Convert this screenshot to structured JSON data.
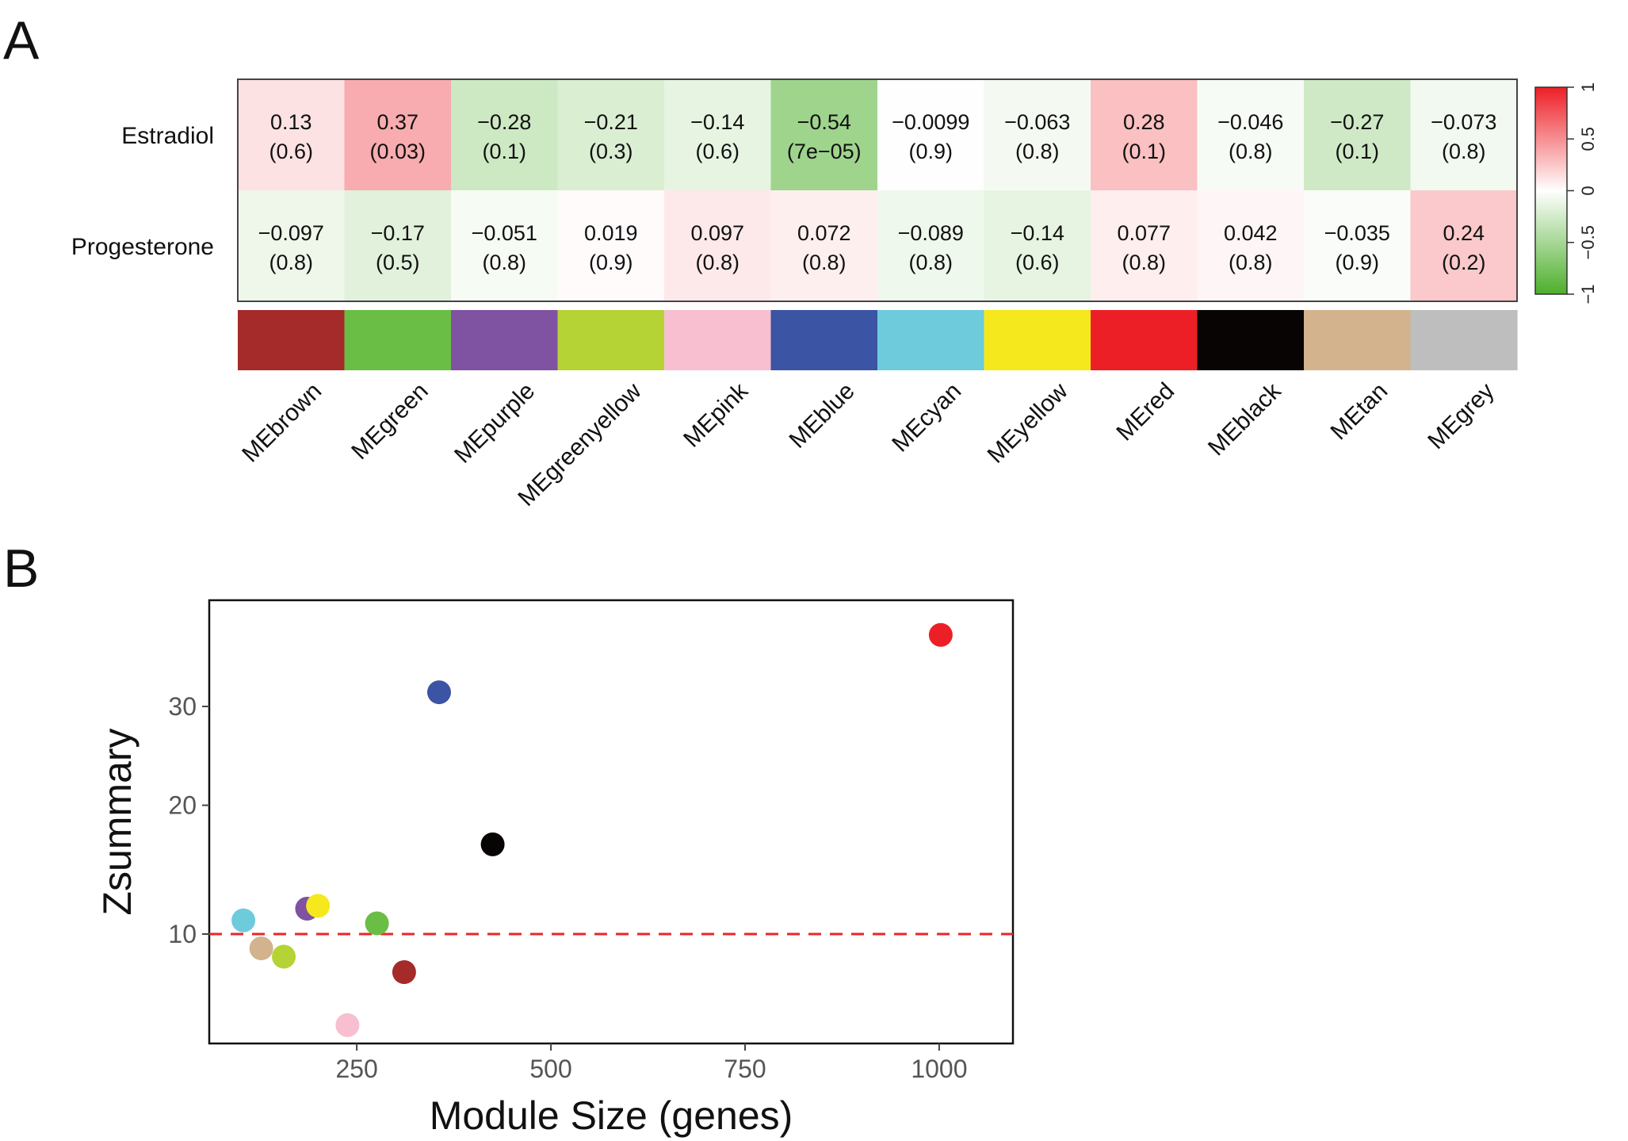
{
  "panel_labels": {
    "a": "A",
    "b": "B"
  },
  "chart_data": [
    {
      "type": "heatmap",
      "panel": "A",
      "rows": [
        "Estradiol",
        "Progesterone"
      ],
      "columns": [
        "MEbrown",
        "MEgreen",
        "MEpurple",
        "MEgreenyellow",
        "MEpink",
        "MEblue",
        "MEcyan",
        "MEyellow",
        "MEred",
        "MEblack",
        "MEtan",
        "MEgrey"
      ],
      "column_colors": [
        "#a52a2a",
        "#6abd45",
        "#7f52a2",
        "#b5d334",
        "#f7bfcf",
        "#3b54a3",
        "#6dcbdc",
        "#f5e81c",
        "#ed1f26",
        "#080404",
        "#d3b38d",
        "#bebebe"
      ],
      "values": [
        [
          0.13,
          0.37,
          -0.28,
          -0.21,
          -0.14,
          -0.54,
          -0.0099,
          -0.063,
          0.28,
          -0.046,
          -0.27,
          -0.073
        ],
        [
          -0.097,
          -0.17,
          -0.051,
          0.019,
          0.097,
          0.072,
          -0.089,
          -0.14,
          0.077,
          0.042,
          -0.035,
          0.24
        ]
      ],
      "value_labels": [
        [
          "0.13",
          "0.37",
          "−0.28",
          "−0.21",
          "−0.14",
          "−0.54",
          "−0.0099",
          "−0.063",
          "0.28",
          "−0.046",
          "−0.27",
          "−0.073"
        ],
        [
          "−0.097",
          "−0.17",
          "−0.051",
          "0.019",
          "0.097",
          "0.072",
          "−0.089",
          "−0.14",
          "0.077",
          "0.042",
          "−0.035",
          "0.24"
        ]
      ],
      "p_labels": [
        [
          "(0.6)",
          "(0.03)",
          "(0.1)",
          "(0.3)",
          "(0.6)",
          "(7e−05)",
          "(0.9)",
          "(0.8)",
          "(0.1)",
          "(0.8)",
          "(0.1)",
          "(0.8)"
        ],
        [
          "(0.8)",
          "(0.5)",
          "(0.8)",
          "(0.9)",
          "(0.8)",
          "(0.8)",
          "(0.8)",
          "(0.6)",
          "(0.8)",
          "(0.8)",
          "(0.9)",
          "(0.2)"
        ]
      ],
      "colorscale": {
        "min": -1,
        "mid": 0,
        "max": 1,
        "low_color": "#4daf2b",
        "mid_color": "#ffffff",
        "high_color": "#ed1f26"
      },
      "colorbar_ticks": [
        -1,
        -0.5,
        0,
        0.5,
        1
      ],
      "colorbar_tick_labels": [
        "−1",
        "−0.5",
        "0",
        "0.5",
        "1"
      ]
    },
    {
      "type": "scatter",
      "panel": "B",
      "xlabel": "Module Size (genes)",
      "ylabel": "Zsummary",
      "xlim": [
        60,
        1095
      ],
      "ylim": [
        4.2,
        43
      ],
      "y_scale": "sqrt",
      "x_ticks": [
        250,
        500,
        750,
        1000
      ],
      "x_tick_labels": [
        "250",
        "500",
        "750",
        "1000"
      ],
      "y_ticks": [
        10,
        20,
        30
      ],
      "y_tick_labels": [
        "10",
        "20",
        "30"
      ],
      "reference_line": {
        "y": 10,
        "style": "dashed",
        "color": "#e8262a"
      },
      "points": [
        {
          "module": "cyan",
          "x": 104,
          "y": 10.9,
          "color": "#6dcbdc"
        },
        {
          "module": "tan",
          "x": 127,
          "y": 9.1,
          "color": "#d3b38d"
        },
        {
          "module": "greenyellow",
          "x": 156,
          "y": 8.6,
          "color": "#b5d334"
        },
        {
          "module": "purple",
          "x": 186,
          "y": 11.7,
          "color": "#7f52a2"
        },
        {
          "module": "yellow",
          "x": 200,
          "y": 11.9,
          "color": "#f5e81c"
        },
        {
          "module": "pink",
          "x": 238,
          "y": 5.0,
          "color": "#f7bfcf"
        },
        {
          "module": "green",
          "x": 276,
          "y": 10.7,
          "color": "#6abd45"
        },
        {
          "module": "brown",
          "x": 311,
          "y": 7.7,
          "color": "#a52a2a"
        },
        {
          "module": "blue",
          "x": 356,
          "y": 31.6,
          "color": "#3b54a3"
        },
        {
          "module": "black",
          "x": 425,
          "y": 16.6,
          "color": "#080404"
        },
        {
          "module": "red",
          "x": 1002,
          "y": 38.5,
          "color": "#ed1f26"
        }
      ]
    }
  ]
}
